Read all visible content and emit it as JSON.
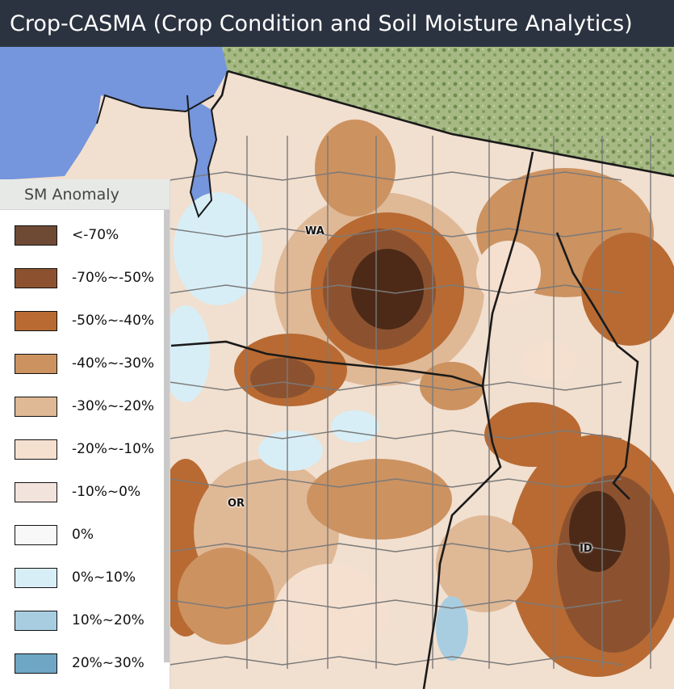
{
  "app": {
    "title": "Crop-CASMA (Crop Condition and Soil Moisture Analytics)"
  },
  "legend": {
    "title": "SM Anomaly",
    "items": [
      {
        "label": "<-70%",
        "color": "#6e4a35"
      },
      {
        "label": "-70%~-50%",
        "color": "#8c5230"
      },
      {
        "label": "-50%~-40%",
        "color": "#b86a32"
      },
      {
        "label": "-40%~-30%",
        "color": "#cc9260"
      },
      {
        "label": "-30%~-20%",
        "color": "#dfb896"
      },
      {
        "label": "-20%~-10%",
        "color": "#f5e0d0"
      },
      {
        "label": "-10%~0%",
        "color": "#f2e3dc"
      },
      {
        "label": "0%",
        "color": "#f8f8f8"
      },
      {
        "label": "0%~10%",
        "color": "#d8eef6"
      },
      {
        "label": "10%~20%",
        "color": "#a8cde0"
      },
      {
        "label": "20%~30%",
        "color": "#6ea6c4"
      }
    ]
  },
  "map": {
    "state_labels": {
      "wa": "WA",
      "or": "OR",
      "id": "ID"
    },
    "colors": {
      "water": "#7595dc",
      "canada_land": "#9db47a",
      "state_border": "#1a1a1a",
      "county_border": "#7a7a7a"
    }
  }
}
